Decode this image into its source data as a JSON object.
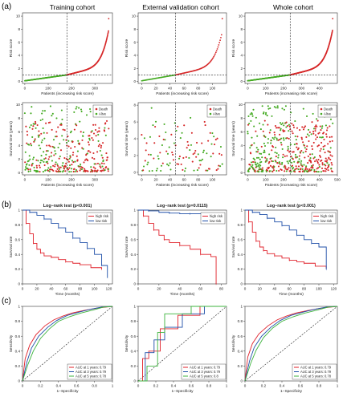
{
  "figure": {
    "panel_labels": [
      "(a)",
      "(b)",
      "(c)"
    ],
    "cohort_titles": [
      "Training cohort",
      "External validation cohort",
      "Whole cohort"
    ]
  },
  "colors": {
    "high_risk": "#d62728",
    "low_risk": "#44aa22",
    "km_high": "#e0202a",
    "km_low": "#1f4fa8",
    "roc_1y": "#e0202a",
    "roc_3y": "#1f4fa8",
    "roc_5y": "#3cb33c"
  },
  "risk_score_plots": {
    "ylabel": "Risk score",
    "xlabel": "Patients (increasing risk score)",
    "panels": [
      {
        "n": 360,
        "cutoff_index": 180,
        "cutoff_value": 1.0,
        "ymax": 10,
        "yticks": [
          0,
          2,
          4,
          6,
          8,
          10
        ],
        "xticks": [
          0,
          100,
          200,
          300
        ]
      },
      {
        "n": 115,
        "cutoff_index": 48,
        "cutoff_value": 1.0,
        "ymax": 10,
        "yticks": [
          0,
          2,
          4,
          6,
          8,
          10
        ],
        "xticks": [
          0,
          20,
          40,
          60,
          80,
          100
        ]
      },
      {
        "n": 475,
        "cutoff_index": 237,
        "cutoff_value": 1.0,
        "ymax": 10,
        "yticks": [
          0,
          2,
          4,
          6,
          8,
          10
        ],
        "xticks": [
          0,
          100,
          200,
          300,
          400
        ]
      }
    ]
  },
  "survival_status_plots": {
    "ylabel": "Survival time (years)",
    "xlabel": "Patients (increasing risk score)",
    "legend": [
      "Death",
      "Alive"
    ],
    "panels": [
      {
        "n": 360,
        "cutoff_index": 180,
        "ymax": 10,
        "yticks": [
          0,
          2,
          4,
          6,
          8,
          10
        ],
        "xticks": [
          0,
          100,
          200,
          300
        ]
      },
      {
        "n": 115,
        "cutoff_index": 48,
        "ymax": 8,
        "yticks": [
          0,
          2,
          4,
          6,
          8
        ],
        "xticks": [
          0,
          20,
          40,
          60,
          80,
          100
        ]
      },
      {
        "n": 475,
        "cutoff_index": 237,
        "ymax": 10,
        "yticks": [
          0,
          2,
          4,
          6,
          8,
          10
        ],
        "xticks": [
          0,
          100,
          200,
          300,
          400,
          500
        ]
      }
    ]
  },
  "chart_data": [
    {
      "type": "line",
      "panel": "(b) Training cohort",
      "title": "Log−rank test (p<0.001)",
      "xlabel": "Time (months)",
      "ylabel": "Survival rate",
      "xlim": [
        0,
        125
      ],
      "ylim": [
        0,
        1
      ],
      "xticks": [
        0,
        20,
        40,
        60,
        80,
        100,
        120
      ],
      "yticks": [
        0,
        0.2,
        0.4,
        0.6,
        0.8,
        1.0
      ],
      "legend": [
        "high risk",
        "low risk"
      ],
      "series": [
        {
          "name": "high risk",
          "x": [
            0,
            5,
            10,
            15,
            20,
            25,
            30,
            40,
            50,
            60,
            70,
            80,
            95,
            110
          ],
          "y": [
            1,
            0.82,
            0.68,
            0.55,
            0.47,
            0.42,
            0.38,
            0.36,
            0.33,
            0.3,
            0.28,
            0.26,
            0.22,
            0.2
          ]
        },
        {
          "name": "low risk",
          "x": [
            0,
            10,
            20,
            30,
            40,
            50,
            60,
            70,
            80,
            90,
            100,
            110,
            118
          ],
          "y": [
            1,
            0.97,
            0.93,
            0.88,
            0.82,
            0.76,
            0.7,
            0.62,
            0.56,
            0.48,
            0.4,
            0.25,
            0.08
          ]
        }
      ]
    },
    {
      "type": "line",
      "panel": "(b) External validation cohort",
      "title": "Log−rank test (p=0.0115)",
      "xlabel": "Time (months)",
      "ylabel": "Survival rate",
      "xlim": [
        0,
        85
      ],
      "ylim": [
        0,
        1
      ],
      "xticks": [
        0,
        20,
        40,
        60,
        80
      ],
      "yticks": [
        0,
        0.2,
        0.4,
        0.6,
        0.8,
        1.0
      ],
      "legend": [
        "high risk",
        "low risk"
      ],
      "series": [
        {
          "name": "high risk",
          "x": [
            0,
            5,
            10,
            15,
            20,
            25,
            30,
            40,
            50,
            60,
            70,
            75
          ],
          "y": [
            1,
            0.92,
            0.82,
            0.73,
            0.66,
            0.6,
            0.56,
            0.52,
            0.47,
            0.4,
            0.37,
            0.0
          ]
        },
        {
          "name": "low risk",
          "x": [
            0,
            10,
            20,
            30,
            40,
            50,
            60,
            70,
            80
          ],
          "y": [
            1,
            0.99,
            0.97,
            0.96,
            0.95,
            0.95,
            0.95,
            0.95,
            0.95
          ]
        }
      ]
    },
    {
      "type": "line",
      "panel": "(b) Whole cohort",
      "title": "Log−rank test (p<0.001)",
      "xlabel": "Time (months)",
      "ylabel": "Survival rate",
      "xlim": [
        0,
        125
      ],
      "ylim": [
        0,
        1
      ],
      "xticks": [
        0,
        20,
        40,
        60,
        80,
        100,
        120
      ],
      "yticks": [
        0,
        0.2,
        0.4,
        0.6,
        0.8,
        1.0
      ],
      "legend": [
        "high risk",
        "low risk"
      ],
      "series": [
        {
          "name": "high risk",
          "x": [
            0,
            5,
            10,
            15,
            20,
            25,
            30,
            40,
            50,
            60,
            70,
            80,
            95,
            110
          ],
          "y": [
            1,
            0.84,
            0.7,
            0.58,
            0.5,
            0.45,
            0.41,
            0.38,
            0.35,
            0.32,
            0.3,
            0.28,
            0.24,
            0.21
          ]
        },
        {
          "name": "low risk",
          "x": [
            0,
            10,
            20,
            30,
            40,
            50,
            60,
            70,
            80,
            90,
            100,
            110
          ],
          "y": [
            1,
            0.97,
            0.94,
            0.89,
            0.84,
            0.79,
            0.73,
            0.66,
            0.6,
            0.55,
            0.5,
            0.2
          ]
        }
      ]
    },
    {
      "type": "line",
      "panel": "(c) Training cohort",
      "xlabel": "1−Specificity",
      "ylabel": "Sensitivity",
      "xlim": [
        0,
        1
      ],
      "ylim": [
        0,
        1
      ],
      "xticks": [
        0,
        0.2,
        0.4,
        0.6,
        0.8,
        1.0
      ],
      "yticks": [
        0,
        0.2,
        0.4,
        0.6,
        0.8,
        1.0
      ],
      "legend": [
        "AUC at 1 years: 0.79",
        "AUC at 3 years: 0.79",
        "AUC at 5 years: 0.78"
      ],
      "series": [
        {
          "name": "AUC at 1 years: 0.79",
          "x": [
            0,
            0.03,
            0.08,
            0.15,
            0.25,
            0.35,
            0.45,
            0.55,
            0.7,
            0.85,
            1
          ],
          "y": [
            0,
            0.3,
            0.48,
            0.62,
            0.74,
            0.82,
            0.87,
            0.91,
            0.95,
            0.98,
            1
          ]
        },
        {
          "name": "AUC at 3 years: 0.79",
          "x": [
            0,
            0.05,
            0.1,
            0.18,
            0.28,
            0.38,
            0.5,
            0.62,
            0.75,
            0.88,
            1
          ],
          "y": [
            0,
            0.26,
            0.44,
            0.6,
            0.72,
            0.81,
            0.88,
            0.92,
            0.96,
            0.99,
            1
          ]
        },
        {
          "name": "AUC at 5 years: 0.78",
          "x": [
            0,
            0.06,
            0.12,
            0.2,
            0.3,
            0.4,
            0.52,
            0.65,
            0.78,
            0.9,
            1
          ],
          "y": [
            0,
            0.22,
            0.4,
            0.57,
            0.7,
            0.8,
            0.86,
            0.91,
            0.95,
            0.99,
            1
          ]
        }
      ]
    },
    {
      "type": "line",
      "panel": "(c) External validation cohort",
      "xlabel": "1−Specificity",
      "ylabel": "Sensitivity",
      "xlim": [
        0,
        1
      ],
      "ylim": [
        0,
        1
      ],
      "xticks": [
        0,
        0.2,
        0.4,
        0.6,
        0.8,
        1.0
      ],
      "yticks": [
        0,
        0.2,
        0.4,
        0.6,
        0.8,
        1.0
      ],
      "legend": [
        "AUC at 1 years: 0.79",
        "AUC at 3 years: 0.79",
        "AUC at 5 years: 0.8"
      ],
      "series": [
        {
          "name": "AUC at 1 years: 0.79",
          "x": [
            0,
            0.05,
            0.05,
            0.12,
            0.12,
            0.25,
            0.25,
            0.45,
            0.45,
            0.7,
            0.7,
            1
          ],
          "y": [
            0,
            0,
            0.3,
            0.3,
            0.4,
            0.4,
            0.7,
            0.7,
            0.88,
            0.88,
            1,
            1
          ]
        },
        {
          "name": "AUC at 3 years: 0.79",
          "x": [
            0,
            0.08,
            0.08,
            0.18,
            0.18,
            0.3,
            0.3,
            0.5,
            0.5,
            0.75,
            0.75,
            1
          ],
          "y": [
            0,
            0,
            0.38,
            0.38,
            0.55,
            0.55,
            0.72,
            0.72,
            0.9,
            0.9,
            1,
            1
          ]
        },
        {
          "name": "AUC at 5 years: 0.8",
          "x": [
            0,
            0.1,
            0.1,
            0.22,
            0.22,
            0.3,
            0.3,
            0.6,
            0.6,
            1
          ],
          "y": [
            0,
            0,
            0.2,
            0.2,
            0.65,
            0.65,
            0.9,
            0.9,
            1,
            1
          ]
        }
      ]
    },
    {
      "type": "line",
      "panel": "(c) Whole cohort",
      "xlabel": "1−Specificity",
      "ylabel": "Sensitivity",
      "xlim": [
        0,
        1
      ],
      "ylim": [
        0,
        1
      ],
      "xticks": [
        0,
        0.2,
        0.4,
        0.6,
        0.8,
        1.0
      ],
      "yticks": [
        0,
        0.2,
        0.4,
        0.6,
        0.8,
        1.0
      ],
      "legend": [
        "AUC at 1 years: 0.79",
        "AUC at 3 years: 0.79",
        "AUC at 5 years: 0.78"
      ],
      "series": [
        {
          "name": "AUC at 1 years: 0.79",
          "x": [
            0,
            0.03,
            0.08,
            0.15,
            0.25,
            0.35,
            0.45,
            0.55,
            0.7,
            0.85,
            1
          ],
          "y": [
            0,
            0.32,
            0.5,
            0.63,
            0.74,
            0.82,
            0.87,
            0.91,
            0.95,
            0.98,
            1
          ]
        },
        {
          "name": "AUC at 3 years: 0.79",
          "x": [
            0,
            0.05,
            0.1,
            0.18,
            0.28,
            0.38,
            0.5,
            0.62,
            0.75,
            0.88,
            1
          ],
          "y": [
            0,
            0.27,
            0.45,
            0.6,
            0.72,
            0.81,
            0.88,
            0.92,
            0.96,
            0.99,
            1
          ]
        },
        {
          "name": "AUC at 5 years: 0.78",
          "x": [
            0,
            0.06,
            0.12,
            0.2,
            0.3,
            0.4,
            0.52,
            0.65,
            0.78,
            0.9,
            1
          ],
          "y": [
            0,
            0.23,
            0.41,
            0.58,
            0.71,
            0.8,
            0.86,
            0.91,
            0.95,
            0.99,
            1
          ]
        }
      ]
    }
  ]
}
